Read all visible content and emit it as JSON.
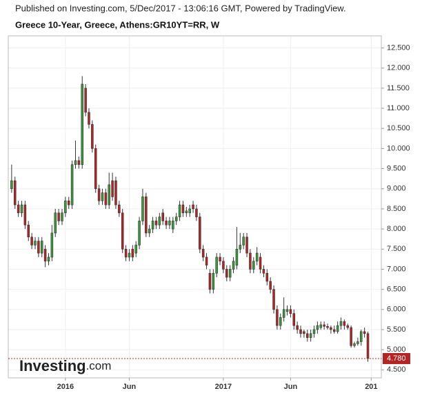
{
  "chart_data": {
    "type": "candlestick",
    "subtitle": "Published on Investing.com, 5/Dec/2017 - 13:06:16 GMT, Powered by TradingView.",
    "title": "Greece 10-Year, Greece, Athens:GR10YT=RR, W",
    "watermark": {
      "brand": "Investing",
      "suffix": ".com"
    },
    "up_color": "#3a9a3a",
    "down_color": "#b52323",
    "grid": true,
    "xlim": [
      -1,
      110
    ],
    "xticks": [
      {
        "value": 16,
        "label": "2016"
      },
      {
        "value": 35,
        "label": "Jun"
      },
      {
        "value": 63,
        "label": "2017"
      },
      {
        "value": 83,
        "label": "Jun"
      },
      {
        "value": 107,
        "label": "201"
      }
    ],
    "ylim": [
      4.3,
      12.8
    ],
    "yticks": [
      {
        "value": 4.5,
        "label": "4.500"
      },
      {
        "value": 5,
        "label": "5.000"
      },
      {
        "value": 5.5,
        "label": "5.500"
      },
      {
        "value": 6,
        "label": "6.000"
      },
      {
        "value": 6.5,
        "label": "6.500"
      },
      {
        "value": 7,
        "label": "7.000"
      },
      {
        "value": 7.5,
        "label": "7.500"
      },
      {
        "value": 8,
        "label": "8.000"
      },
      {
        "value": 8.5,
        "label": "8.500"
      },
      {
        "value": 9,
        "label": "9.000"
      },
      {
        "value": 9.5,
        "label": "9.500"
      },
      {
        "value": 10,
        "label": "10.000"
      },
      {
        "value": 10.5,
        "label": "10.500"
      },
      {
        "value": 11,
        "label": "11.000"
      },
      {
        "value": 11.5,
        "label": "11.500"
      },
      {
        "value": 12,
        "label": "12.000"
      },
      {
        "value": 12.5,
        "label": "12.500"
      }
    ],
    "last_price": {
      "value": 4.78,
      "label": "4.780"
    },
    "x": [
      0,
      1,
      2,
      3,
      4,
      5,
      6,
      7,
      8,
      9,
      10,
      11,
      12,
      13,
      14,
      15,
      16,
      17,
      18,
      19,
      20,
      21,
      22,
      23,
      24,
      25,
      26,
      27,
      28,
      29,
      30,
      31,
      32,
      33,
      34,
      35,
      36,
      37,
      38,
      39,
      40,
      41,
      42,
      43,
      44,
      45,
      46,
      47,
      48,
      49,
      50,
      51,
      52,
      53,
      54,
      55,
      56,
      57,
      58,
      59,
      60,
      61,
      62,
      63,
      64,
      65,
      66,
      67,
      68,
      69,
      70,
      71,
      72,
      73,
      74,
      75,
      76,
      77,
      78,
      79,
      80,
      81,
      82,
      83,
      84,
      85,
      86,
      87,
      88,
      89,
      90,
      91,
      92,
      93,
      94,
      95,
      96,
      97,
      98,
      99,
      100,
      101,
      102,
      103,
      104,
      105,
      106
    ],
    "open": [
      9.0,
      9.2,
      8.6,
      8.4,
      8.6,
      8.1,
      7.8,
      7.6,
      7.7,
      7.4,
      7.5,
      7.2,
      7.3,
      7.9,
      8.4,
      8.2,
      8.4,
      8.7,
      8.6,
      9.6,
      9.7,
      9.6,
      11.5,
      10.9,
      10.6,
      10.0,
      9.0,
      8.7,
      8.9,
      8.6,
      9.2,
      9.2,
      8.6,
      8.4,
      7.5,
      7.3,
      7.5,
      7.4,
      7.6,
      8.2,
      8.8,
      7.9,
      8.0,
      8.2,
      8.1,
      8.4,
      8.2,
      8.1,
      8.0,
      8.2,
      8.3,
      8.6,
      8.4,
      8.4,
      8.6,
      8.5,
      8.3,
      7.5,
      7.3,
      6.9,
      6.5,
      6.9,
      7.3,
      7.2,
      7.0,
      6.8,
      7.0,
      7.1,
      7.5,
      7.6,
      7.8,
      7.4,
      7.0,
      7.2,
      7.3,
      7.0,
      6.9,
      6.7,
      6.5,
      6.0,
      5.6,
      5.8,
      5.95,
      6.0,
      5.9,
      5.6,
      5.5,
      5.45,
      5.4,
      5.3,
      5.4,
      5.5,
      5.55,
      5.62,
      5.58,
      5.55,
      5.5,
      5.45,
      5.6,
      5.7,
      5.6,
      5.55,
      5.1,
      5.15,
      5.2,
      5.45,
      5.4
    ],
    "high": [
      9.6,
      9.3,
      8.7,
      8.7,
      8.7,
      8.2,
      7.9,
      7.8,
      7.8,
      7.8,
      7.6,
      7.4,
      8.1,
      8.5,
      8.5,
      8.5,
      8.8,
      8.8,
      9.7,
      10.2,
      9.8,
      11.8,
      11.6,
      11.0,
      10.7,
      10.1,
      9.1,
      9.0,
      9.0,
      9.4,
      9.4,
      9.3,
      8.7,
      8.5,
      7.6,
      7.5,
      7.6,
      7.7,
      8.3,
      9.0,
      8.9,
      8.1,
      8.3,
      8.3,
      8.4,
      8.5,
      8.3,
      8.3,
      8.3,
      8.4,
      8.7,
      8.7,
      8.55,
      8.6,
      8.7,
      8.6,
      8.4,
      7.6,
      7.4,
      7.0,
      7.0,
      7.4,
      7.4,
      7.3,
      7.1,
      7.1,
      7.3,
      8.05,
      7.9,
      7.9,
      7.9,
      7.5,
      7.3,
      7.55,
      7.4,
      7.1,
      7.0,
      6.8,
      6.6,
      6.1,
      5.9,
      6.3,
      6.1,
      6.1,
      6.0,
      5.7,
      5.6,
      5.5,
      5.5,
      5.5,
      5.6,
      5.7,
      5.7,
      5.7,
      5.65,
      5.6,
      5.6,
      5.7,
      5.8,
      5.75,
      5.65,
      5.6,
      5.2,
      5.3,
      5.5,
      5.55,
      5.45
    ],
    "low": [
      8.9,
      8.5,
      8.3,
      8.3,
      8.0,
      7.7,
      7.5,
      7.5,
      7.3,
      7.3,
      7.05,
      7.1,
      7.2,
      7.8,
      8.1,
      8.1,
      8.3,
      8.5,
      8.5,
      9.5,
      9.5,
      9.5,
      10.8,
      10.5,
      9.9,
      8.9,
      8.6,
      8.6,
      8.5,
      8.5,
      8.7,
      8.5,
      8.3,
      7.4,
      7.2,
      7.2,
      7.2,
      7.3,
      7.5,
      8.1,
      7.8,
      7.8,
      7.9,
      8.0,
      8.0,
      8.1,
      8.0,
      8.0,
      7.9,
      8.1,
      8.2,
      8.3,
      8.3,
      8.3,
      8.4,
      8.2,
      7.4,
      7.2,
      7.0,
      6.4,
      6.4,
      6.8,
      7.1,
      6.9,
      6.7,
      6.7,
      6.9,
      7.0,
      7.4,
      7.5,
      7.3,
      6.9,
      6.9,
      7.1,
      6.9,
      6.8,
      6.6,
      6.4,
      5.9,
      5.5,
      5.5,
      5.7,
      5.85,
      5.8,
      5.5,
      5.4,
      5.3,
      5.3,
      5.2,
      5.2,
      5.3,
      5.4,
      5.5,
      5.5,
      5.5,
      5.4,
      5.4,
      5.4,
      5.5,
      5.5,
      5.5,
      5.05,
      5.05,
      5.1,
      5.1,
      5.3,
      4.7
    ],
    "close": [
      9.2,
      8.6,
      8.4,
      8.6,
      8.1,
      7.8,
      7.6,
      7.7,
      7.4,
      7.7,
      7.2,
      7.3,
      7.9,
      8.4,
      8.2,
      8.4,
      8.7,
      8.6,
      9.6,
      9.7,
      9.6,
      11.6,
      10.9,
      10.6,
      10.0,
      9.0,
      8.7,
      8.9,
      8.6,
      9.1,
      8.8,
      8.6,
      8.4,
      7.5,
      7.3,
      7.4,
      7.3,
      7.6,
      8.2,
      8.8,
      7.9,
      8.0,
      8.2,
      8.1,
      8.3,
      8.2,
      8.1,
      8.2,
      8.2,
      8.3,
      8.6,
      8.4,
      8.45,
      8.5,
      8.5,
      8.3,
      7.5,
      7.3,
      7.1,
      6.5,
      6.9,
      7.3,
      7.2,
      7.0,
      6.8,
      7.0,
      7.2,
      7.5,
      7.6,
      7.8,
      7.4,
      7.0,
      7.2,
      7.4,
      7.0,
      6.9,
      6.7,
      6.5,
      6.0,
      5.6,
      5.8,
      6.0,
      6.0,
      5.9,
      5.6,
      5.5,
      5.4,
      5.4,
      5.3,
      5.4,
      5.5,
      5.6,
      5.62,
      5.58,
      5.55,
      5.5,
      5.45,
      5.6,
      5.7,
      5.6,
      5.55,
      5.1,
      5.15,
      5.2,
      5.45,
      5.4,
      4.78
    ]
  }
}
